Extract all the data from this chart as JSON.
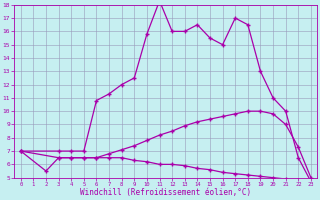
{
  "xlabel": "Windchill (Refroidissement éolien,°C)",
  "xlim": [
    -0.5,
    23.5
  ],
  "ylim": [
    5,
    18
  ],
  "xticks": [
    0,
    1,
    2,
    3,
    4,
    5,
    6,
    7,
    8,
    9,
    10,
    11,
    12,
    13,
    14,
    15,
    16,
    17,
    18,
    19,
    20,
    21,
    22,
    23
  ],
  "yticks": [
    5,
    6,
    7,
    8,
    9,
    10,
    11,
    12,
    13,
    14,
    15,
    16,
    17,
    18
  ],
  "bg_color": "#c6eff1",
  "line_color": "#aa00aa",
  "grid_color": "#9999bb",
  "curve_x": [
    0,
    3,
    4,
    5,
    6,
    7,
    8,
    9,
    10,
    11,
    12,
    13,
    14,
    15,
    16,
    17,
    18,
    19,
    20,
    21,
    22,
    23
  ],
  "curve_y": [
    7,
    7,
    7,
    7,
    10.8,
    11.3,
    12.0,
    12.5,
    15.8,
    18.3,
    16.0,
    16.0,
    16.5,
    15.5,
    15.0,
    17.0,
    16.5,
    13.0,
    11.0,
    10.0,
    6.5,
    4.7
  ],
  "line2_x": [
    0,
    3,
    4,
    5,
    6,
    7,
    8,
    9,
    10,
    11,
    12,
    13,
    14,
    15,
    16,
    17,
    18,
    19,
    20,
    21,
    22,
    23
  ],
  "line2_y": [
    7,
    6.5,
    6.5,
    6.5,
    6.5,
    6.8,
    7.1,
    7.4,
    7.8,
    8.2,
    8.5,
    8.9,
    9.2,
    9.4,
    9.6,
    9.8,
    10.0,
    10.0,
    9.8,
    9.0,
    7.3,
    5.0
  ],
  "line3_x": [
    0,
    2,
    3,
    4,
    5,
    6,
    7,
    8,
    9,
    10,
    11,
    12,
    13,
    14,
    15,
    16,
    17,
    18,
    19,
    20,
    21,
    22,
    23
  ],
  "line3_y": [
    7,
    5.5,
    6.5,
    6.5,
    6.5,
    6.5,
    6.5,
    6.5,
    6.3,
    6.2,
    6.0,
    6.0,
    5.9,
    5.7,
    5.6,
    5.4,
    5.3,
    5.2,
    5.1,
    5.0,
    4.9,
    4.8,
    4.7
  ],
  "markersize": 3,
  "linewidth": 0.9
}
